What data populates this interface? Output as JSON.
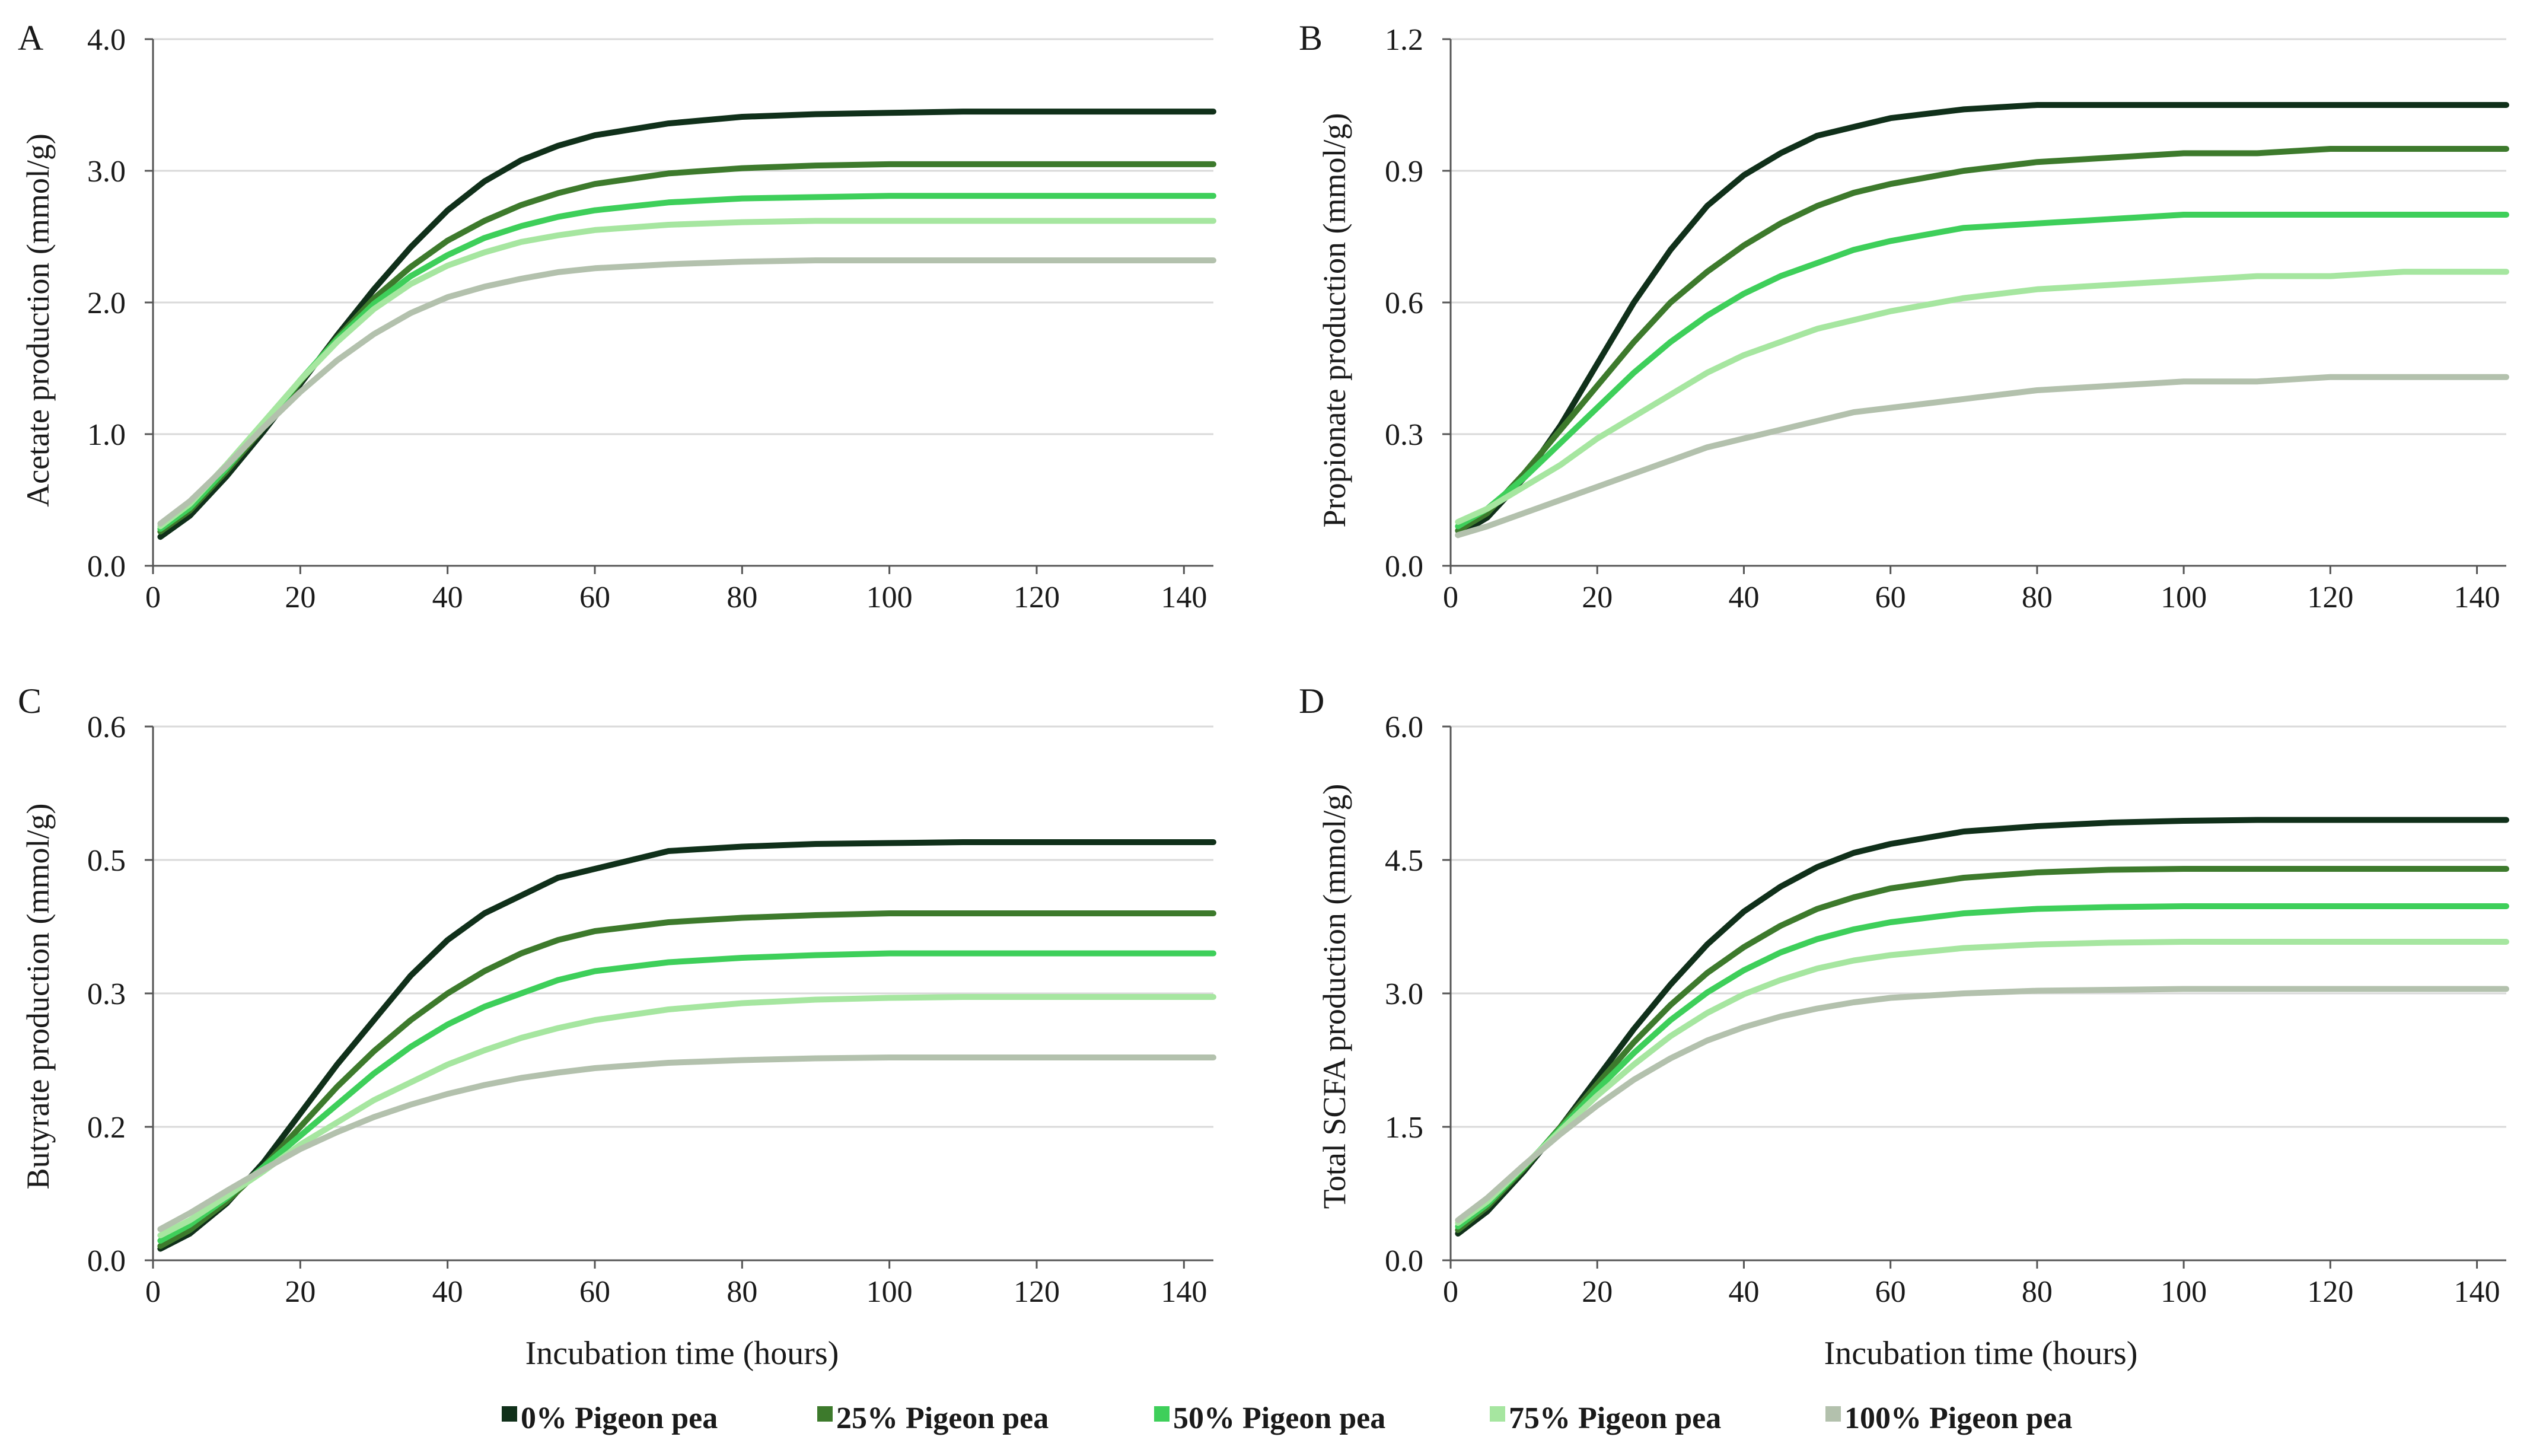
{
  "legend": [
    {
      "label": "0% Pigeon pea",
      "color": "#10301a"
    },
    {
      "label": "25% Pigeon pea",
      "color": "#3d7a2c"
    },
    {
      "label": "50% Pigeon pea",
      "color": "#3ecf5a"
    },
    {
      "label": "75% Pigeon pea",
      "color": "#a6e6a0"
    },
    {
      "label": "100% Pigeon pea",
      "color": "#b3c1ad"
    }
  ],
  "chart_data": [
    {
      "type": "line",
      "panel": "A",
      "ylabel": "Acetate production (mmol/g)",
      "xlabel": "",
      "xlim": [
        0,
        144
      ],
      "ylim": [
        0,
        4
      ],
      "xticks": [
        "0",
        "20",
        "40",
        "60",
        "80",
        "100",
        "120",
        "140"
      ],
      "yticks": [
        "0.0",
        "1.0",
        "2.0",
        "3.0",
        "4.0"
      ],
      "grid": true,
      "x": [
        1,
        5,
        10,
        15,
        20,
        25,
        30,
        35,
        40,
        45,
        50,
        55,
        60,
        70,
        80,
        90,
        100,
        110,
        120,
        130,
        144
      ],
      "series": [
        {
          "name": "0% Pigeon pea",
          "values": [
            0.22,
            0.38,
            0.68,
            1.02,
            1.38,
            1.75,
            2.1,
            2.42,
            2.7,
            2.92,
            3.08,
            3.19,
            3.27,
            3.36,
            3.41,
            3.43,
            3.44,
            3.45,
            3.45,
            3.45,
            3.45
          ]
        },
        {
          "name": "25% Pigeon pea",
          "values": [
            0.26,
            0.42,
            0.72,
            1.05,
            1.4,
            1.73,
            2.03,
            2.27,
            2.47,
            2.62,
            2.74,
            2.83,
            2.9,
            2.98,
            3.02,
            3.04,
            3.05,
            3.05,
            3.05,
            3.05,
            3.05
          ]
        },
        {
          "name": "50% Pigeon pea",
          "values": [
            0.28,
            0.44,
            0.74,
            1.07,
            1.41,
            1.72,
            1.99,
            2.2,
            2.36,
            2.49,
            2.58,
            2.65,
            2.7,
            2.76,
            2.79,
            2.8,
            2.81,
            2.81,
            2.81,
            2.81,
            2.81
          ]
        },
        {
          "name": "75% Pigeon pea",
          "values": [
            0.3,
            0.47,
            0.77,
            1.09,
            1.41,
            1.7,
            1.95,
            2.14,
            2.28,
            2.38,
            2.46,
            2.51,
            2.55,
            2.59,
            2.61,
            2.62,
            2.62,
            2.62,
            2.62,
            2.62,
            2.62
          ]
        },
        {
          "name": "100% Pigeon pea",
          "values": [
            0.32,
            0.49,
            0.76,
            1.05,
            1.32,
            1.56,
            1.76,
            1.92,
            2.04,
            2.12,
            2.18,
            2.23,
            2.26,
            2.29,
            2.31,
            2.32,
            2.32,
            2.32,
            2.32,
            2.32,
            2.32
          ]
        }
      ]
    },
    {
      "type": "line",
      "panel": "B",
      "ylabel": "Propionate production (mmol/g)",
      "xlabel": "",
      "xlim": [
        0,
        144
      ],
      "ylim": [
        0,
        1.2
      ],
      "xticks": [
        "0",
        "20",
        "40",
        "60",
        "80",
        "100",
        "120",
        "140"
      ],
      "yticks": [
        "0.0",
        "0.3",
        "0.6",
        "0.9",
        "1.2"
      ],
      "grid": true,
      "x": [
        1,
        5,
        10,
        15,
        20,
        25,
        30,
        35,
        40,
        45,
        50,
        55,
        60,
        70,
        80,
        90,
        100,
        110,
        120,
        130,
        144
      ],
      "series": [
        {
          "name": "0% Pigeon pea",
          "values": [
            0.07,
            0.11,
            0.2,
            0.32,
            0.46,
            0.6,
            0.72,
            0.82,
            0.89,
            0.94,
            0.98,
            1.0,
            1.02,
            1.04,
            1.05,
            1.05,
            1.05,
            1.05,
            1.05,
            1.05,
            1.05
          ]
        },
        {
          "name": "25% Pigeon pea",
          "values": [
            0.08,
            0.12,
            0.21,
            0.31,
            0.41,
            0.51,
            0.6,
            0.67,
            0.73,
            0.78,
            0.82,
            0.85,
            0.87,
            0.9,
            0.92,
            0.93,
            0.94,
            0.94,
            0.95,
            0.95,
            0.95
          ]
        },
        {
          "name": "50% Pigeon pea",
          "values": [
            0.09,
            0.13,
            0.2,
            0.28,
            0.36,
            0.44,
            0.51,
            0.57,
            0.62,
            0.66,
            0.69,
            0.72,
            0.74,
            0.77,
            0.78,
            0.79,
            0.8,
            0.8,
            0.8,
            0.8,
            0.8
          ]
        },
        {
          "name": "75% Pigeon pea",
          "values": [
            0.1,
            0.13,
            0.18,
            0.23,
            0.29,
            0.34,
            0.39,
            0.44,
            0.48,
            0.51,
            0.54,
            0.56,
            0.58,
            0.61,
            0.63,
            0.64,
            0.65,
            0.66,
            0.66,
            0.67,
            0.67
          ]
        },
        {
          "name": "100% Pigeon pea",
          "values": [
            0.07,
            0.09,
            0.12,
            0.15,
            0.18,
            0.21,
            0.24,
            0.27,
            0.29,
            0.31,
            0.33,
            0.35,
            0.36,
            0.38,
            0.4,
            0.41,
            0.42,
            0.42,
            0.43,
            0.43,
            0.43
          ]
        }
      ]
    },
    {
      "type": "line",
      "panel": "C",
      "ylabel": "Butyrate production (mmol/g)",
      "xlabel": "Incubation time (hours)",
      "xlim": [
        0,
        144
      ],
      "ylim": [
        0,
        0.6
      ],
      "xticks": [
        "0",
        "20",
        "40",
        "60",
        "80",
        "100",
        "120",
        "140"
      ],
      "yticks": [
        "0.0",
        "0.2",
        "0.3",
        "0.5",
        "0.6"
      ],
      "grid": true,
      "x": [
        1,
        5,
        10,
        15,
        20,
        25,
        30,
        35,
        40,
        45,
        50,
        55,
        60,
        70,
        80,
        90,
        100,
        110,
        120,
        130,
        144
      ],
      "series": [
        {
          "name": "0% Pigeon pea",
          "values": [
            0.013,
            0.03,
            0.064,
            0.11,
            0.165,
            0.22,
            0.27,
            0.32,
            0.36,
            0.39,
            0.41,
            0.43,
            0.44,
            0.46,
            0.465,
            0.468,
            0.469,
            0.47,
            0.47,
            0.47,
            0.47
          ]
        },
        {
          "name": "25% Pigeon pea",
          "values": [
            0.016,
            0.034,
            0.066,
            0.105,
            0.15,
            0.195,
            0.235,
            0.27,
            0.3,
            0.325,
            0.345,
            0.36,
            0.37,
            0.38,
            0.385,
            0.388,
            0.39,
            0.39,
            0.39,
            0.39,
            0.39
          ]
        },
        {
          "name": "50% Pigeon pea",
          "values": [
            0.022,
            0.04,
            0.07,
            0.105,
            0.14,
            0.175,
            0.21,
            0.24,
            0.265,
            0.285,
            0.3,
            0.315,
            0.325,
            0.335,
            0.34,
            0.343,
            0.345,
            0.345,
            0.345,
            0.345,
            0.345
          ]
        },
        {
          "name": "75% Pigeon pea",
          "values": [
            0.028,
            0.045,
            0.072,
            0.1,
            0.13,
            0.155,
            0.18,
            0.2,
            0.22,
            0.236,
            0.25,
            0.261,
            0.27,
            0.282,
            0.289,
            0.293,
            0.295,
            0.296,
            0.296,
            0.296,
            0.296
          ]
        },
        {
          "name": "100% Pigeon pea",
          "values": [
            0.035,
            0.053,
            0.078,
            0.102,
            0.125,
            0.144,
            0.161,
            0.175,
            0.187,
            0.197,
            0.205,
            0.211,
            0.216,
            0.222,
            0.225,
            0.227,
            0.228,
            0.228,
            0.228,
            0.228,
            0.228
          ]
        }
      ]
    },
    {
      "type": "line",
      "panel": "D",
      "ylabel": "Total SCFA production (mmol/g)",
      "xlabel": "Incubation time (hours)",
      "xlim": [
        0,
        144
      ],
      "ylim": [
        0,
        6
      ],
      "xticks": [
        "0",
        "20",
        "40",
        "60",
        "80",
        "100",
        "120",
        "140"
      ],
      "yticks": [
        "0.0",
        "1.5",
        "3.0",
        "4.5",
        "6.0"
      ],
      "grid": true,
      "x": [
        1,
        5,
        10,
        15,
        20,
        25,
        30,
        35,
        40,
        45,
        50,
        55,
        60,
        70,
        80,
        90,
        100,
        110,
        120,
        130,
        144
      ],
      "series": [
        {
          "name": "0% Pigeon pea",
          "values": [
            0.3,
            0.55,
            1.0,
            1.5,
            2.05,
            2.6,
            3.1,
            3.55,
            3.92,
            4.2,
            4.42,
            4.58,
            4.68,
            4.82,
            4.88,
            4.92,
            4.94,
            4.95,
            4.95,
            4.95,
            4.95
          ]
        },
        {
          "name": "25% Pigeon pea",
          "values": [
            0.34,
            0.6,
            1.03,
            1.5,
            1.98,
            2.45,
            2.87,
            3.23,
            3.52,
            3.76,
            3.95,
            4.08,
            4.18,
            4.3,
            4.36,
            4.39,
            4.4,
            4.4,
            4.4,
            4.4,
            4.4
          ]
        },
        {
          "name": "50% Pigeon pea",
          "values": [
            0.38,
            0.63,
            1.05,
            1.48,
            1.92,
            2.33,
            2.7,
            3.01,
            3.26,
            3.46,
            3.61,
            3.72,
            3.8,
            3.9,
            3.95,
            3.97,
            3.98,
            3.98,
            3.98,
            3.98,
            3.98
          ]
        },
        {
          "name": "75% Pigeon pea",
          "values": [
            0.42,
            0.66,
            1.06,
            1.46,
            1.85,
            2.2,
            2.52,
            2.78,
            2.99,
            3.15,
            3.28,
            3.37,
            3.43,
            3.51,
            3.55,
            3.57,
            3.58,
            3.58,
            3.58,
            3.58,
            3.58
          ]
        },
        {
          "name": "100% Pigeon pea",
          "values": [
            0.45,
            0.7,
            1.07,
            1.42,
            1.74,
            2.03,
            2.27,
            2.47,
            2.62,
            2.74,
            2.83,
            2.9,
            2.95,
            3.0,
            3.03,
            3.04,
            3.05,
            3.05,
            3.05,
            3.05,
            3.05
          ]
        }
      ]
    }
  ]
}
